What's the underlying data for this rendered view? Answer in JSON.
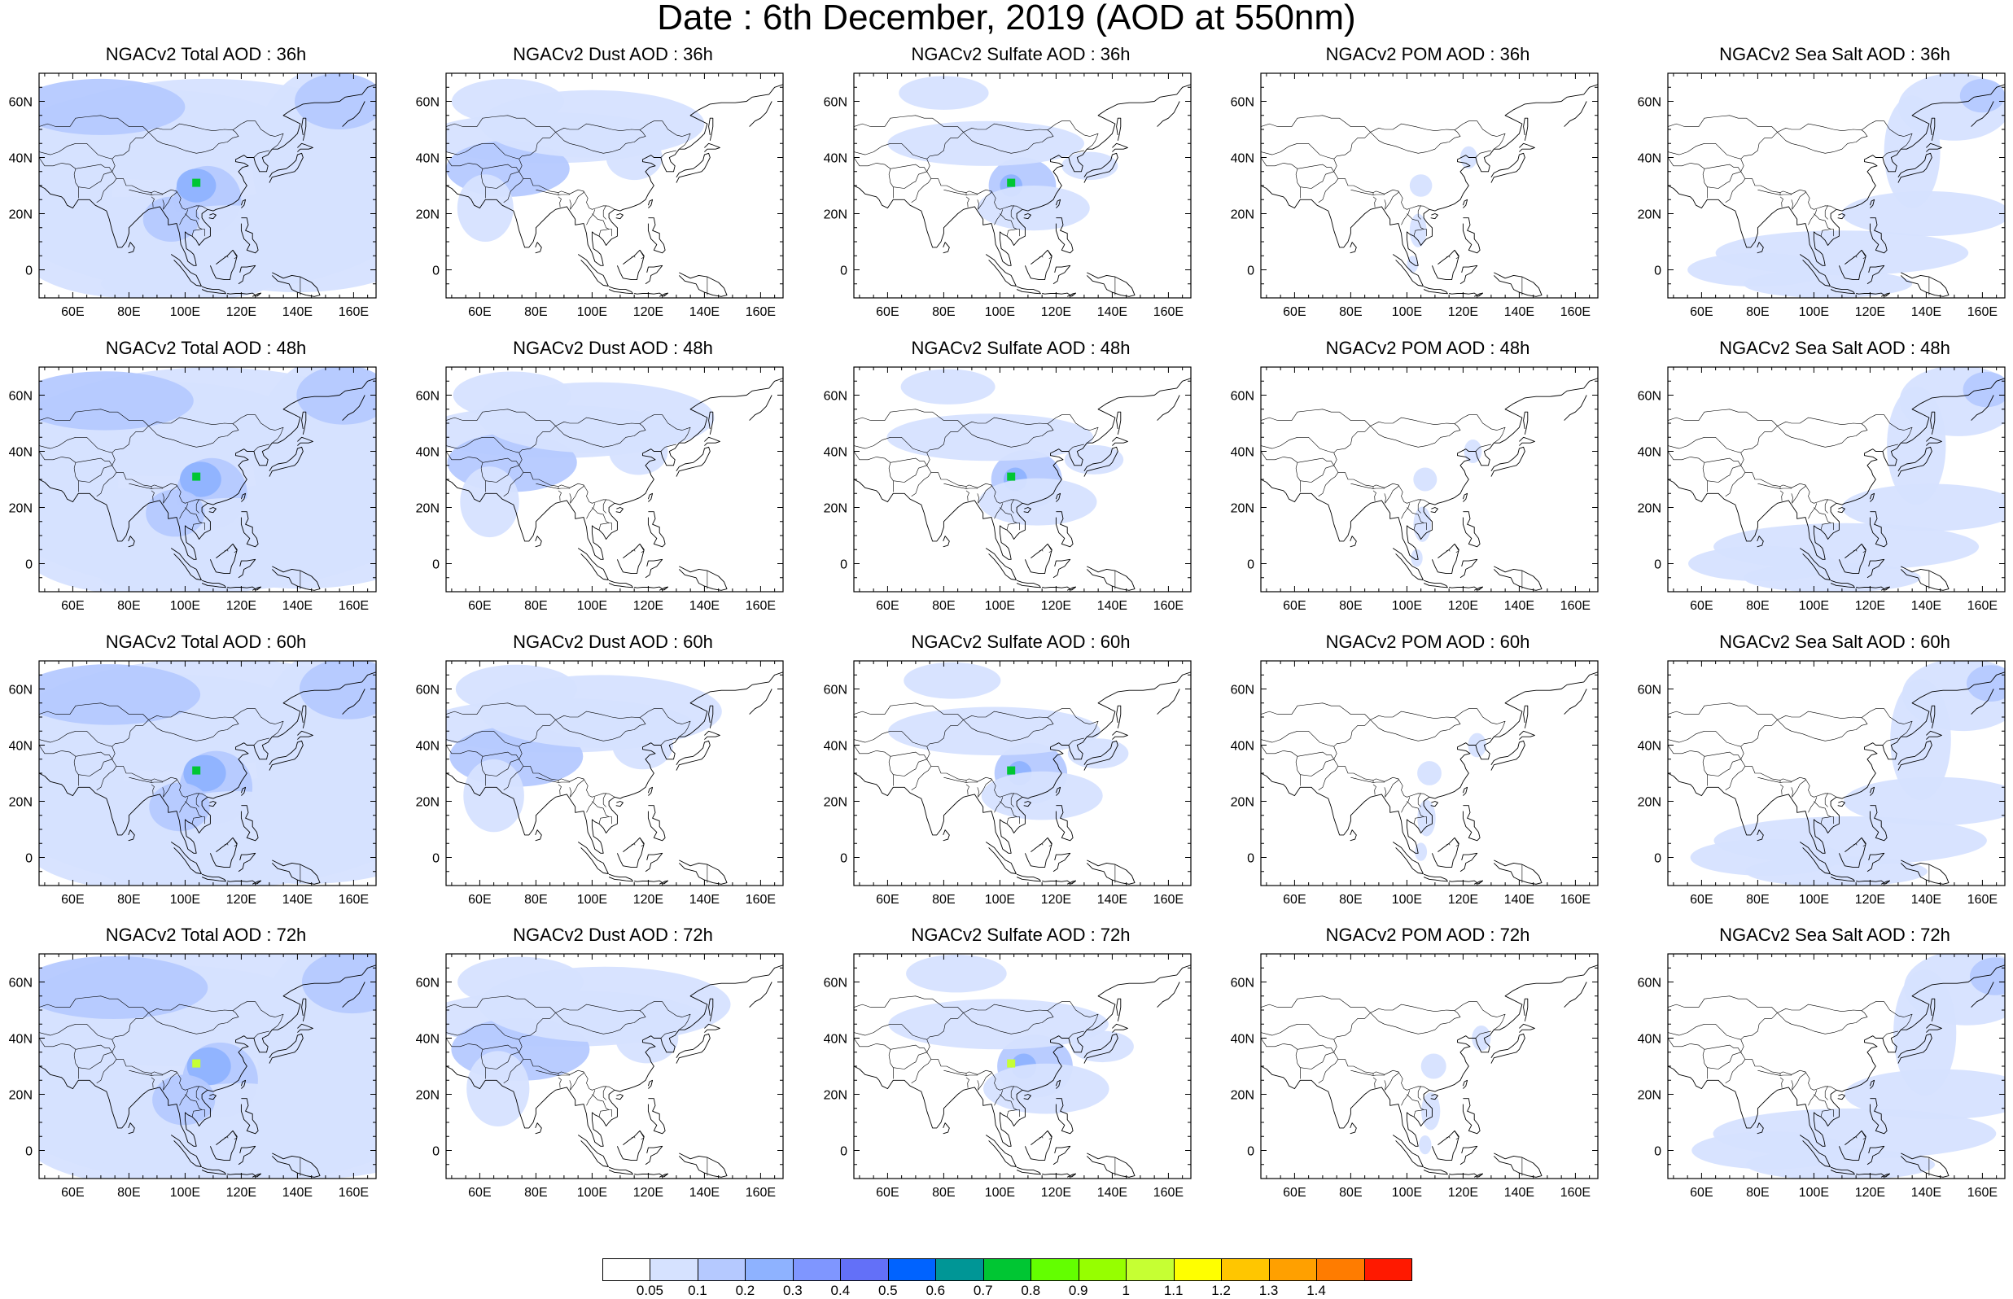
{
  "title": "Date : 6th December, 2019 (AOD at 550nm)",
  "grid": {
    "rows": [
      "36h",
      "48h",
      "60h",
      "72h"
    ],
    "columns": [
      "total",
      "dust",
      "sulfate",
      "pom",
      "seasalt"
    ]
  },
  "panels": [
    {
      "title": "NGACv2 Total AOD : 36h",
      "species": "total",
      "lead": "36h"
    },
    {
      "title": "NGACv2 Dust AOD : 36h",
      "species": "dust",
      "lead": "36h"
    },
    {
      "title": "NGACv2 Sulfate AOD : 36h",
      "species": "sulfate",
      "lead": "36h"
    },
    {
      "title": "NGACv2 POM AOD : 36h",
      "species": "pom",
      "lead": "36h"
    },
    {
      "title": "NGACv2 Sea Salt AOD : 36h",
      "species": "seasalt",
      "lead": "36h"
    },
    {
      "title": "NGACv2 Total AOD : 48h",
      "species": "total",
      "lead": "48h"
    },
    {
      "title": "NGACv2 Dust AOD : 48h",
      "species": "dust",
      "lead": "48h"
    },
    {
      "title": "NGACv2 Sulfate AOD : 48h",
      "species": "sulfate",
      "lead": "48h"
    },
    {
      "title": "NGACv2 POM AOD : 48h",
      "species": "pom",
      "lead": "48h"
    },
    {
      "title": "NGACv2 Sea Salt AOD : 48h",
      "species": "seasalt",
      "lead": "48h"
    },
    {
      "title": "NGACv2 Total AOD : 60h",
      "species": "total",
      "lead": "60h"
    },
    {
      "title": "NGACv2 Dust AOD : 60h",
      "species": "dust",
      "lead": "60h"
    },
    {
      "title": "NGACv2 Sulfate AOD : 60h",
      "species": "sulfate",
      "lead": "60h"
    },
    {
      "title": "NGACv2 POM AOD : 60h",
      "species": "pom",
      "lead": "60h"
    },
    {
      "title": "NGACv2 Sea Salt AOD : 60h",
      "species": "seasalt",
      "lead": "60h"
    },
    {
      "title": "NGACv2 Total AOD : 72h",
      "species": "total",
      "lead": "72h"
    },
    {
      "title": "NGACv2 Dust AOD : 72h",
      "species": "dust",
      "lead": "72h"
    },
    {
      "title": "NGACv2 Sulfate AOD : 72h",
      "species": "sulfate",
      "lead": "72h"
    },
    {
      "title": "NGACv2 POM AOD : 72h",
      "species": "pom",
      "lead": "72h"
    },
    {
      "title": "NGACv2 Sea Salt  AOD : 72h",
      "species": "seasalt",
      "lead": "72h"
    }
  ],
  "map": {
    "lon_range": [
      48,
      168
    ],
    "lat_range": [
      -10,
      70
    ],
    "lon_ticks": [
      "60E",
      "80E",
      "100E",
      "120E",
      "140E",
      "160E"
    ],
    "lon_tick_values": [
      60,
      80,
      100,
      120,
      140,
      160
    ],
    "lat_ticks": [
      "0",
      "20N",
      "40N",
      "60N"
    ],
    "lat_tick_values": [
      0,
      20,
      40,
      60
    ]
  },
  "colorbar": {
    "labels": [
      "0.05",
      "0.1",
      "0.2",
      "0.3",
      "0.4",
      "0.5",
      "0.6",
      "0.7",
      "0.8",
      "0.9",
      "1",
      "1.1",
      "1.2",
      "1.3",
      "1.4"
    ],
    "colors": [
      "#ffffff",
      "#d6e2ff",
      "#b5c9ff",
      "#8eb2ff",
      "#7f96ff",
      "#6370f8",
      "#0063ff",
      "#009696",
      "#00c633",
      "#63ff00",
      "#96ff00",
      "#c6ff33",
      "#ffff00",
      "#ffc600",
      "#ffa000",
      "#ff7c00",
      "#ff1900"
    ]
  },
  "chart_data": {
    "type": "heatmap",
    "title": "Date : 6th December, 2019 (AOD at 550nm)",
    "variable": "AOD at 550nm",
    "x_axis": {
      "ticks": [
        "60E",
        "80E",
        "100E",
        "120E",
        "140E",
        "160E"
      ],
      "range": [
        48,
        168
      ]
    },
    "y_axis": {
      "ticks": [
        "0",
        "20N",
        "40N",
        "60N"
      ],
      "range": [
        -10,
        70
      ]
    },
    "color_levels": [
      0.05,
      0.1,
      0.2,
      0.3,
      0.4,
      0.5,
      0.6,
      0.7,
      0.8,
      0.9,
      1,
      1.1,
      1.2,
      1.3,
      1.4
    ],
    "panels_per_row": 5,
    "rows": 4
  }
}
